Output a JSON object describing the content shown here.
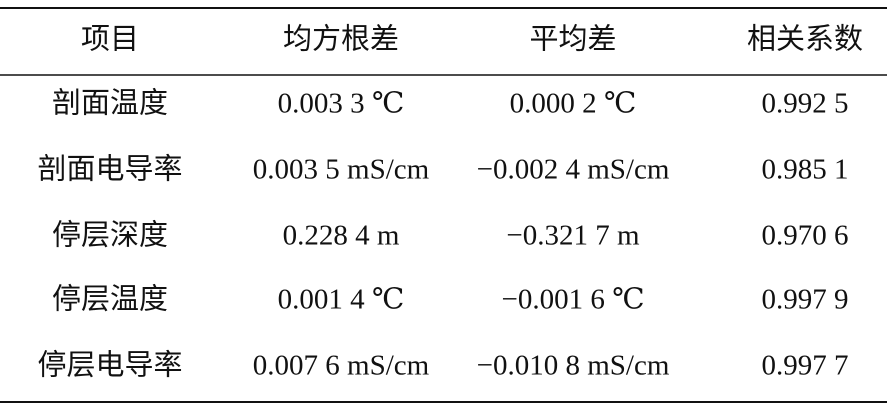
{
  "table": {
    "header": [
      "项目",
      "均方根差",
      "平均差",
      "相关系数"
    ],
    "rows": [
      [
        "剖面温度",
        "0.003 3 ℃",
        "0.000 2 ℃",
        "0.992 5"
      ],
      [
        "剖面电导率",
        "0.003 5 mS/cm",
        "−0.002 4 mS/cm",
        "0.985 1"
      ],
      [
        "停层深度",
        "0.228 4 m",
        "−0.321 7 m",
        "0.970 6"
      ],
      [
        "停层温度",
        "0.001 4 ℃",
        "−0.001 6 ℃",
        "0.997 9"
      ],
      [
        "停层电导率",
        "0.007 6 mS/cm",
        "−0.010 8 mS/cm",
        "0.997 7"
      ]
    ]
  }
}
